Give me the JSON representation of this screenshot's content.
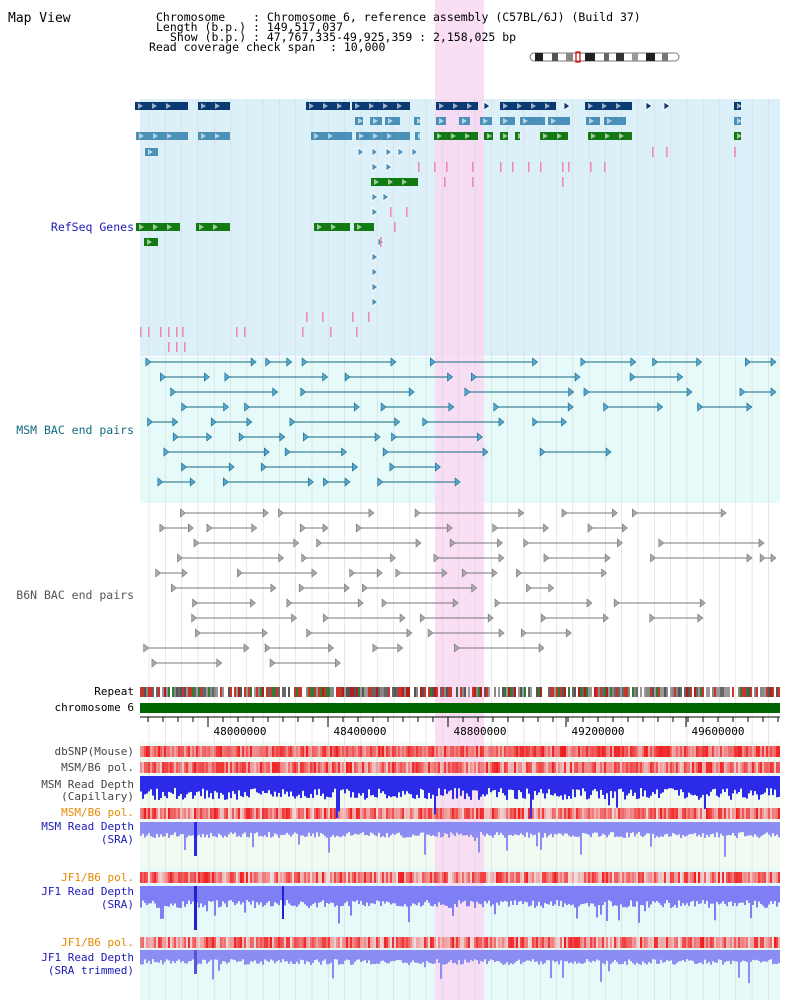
{
  "app": {
    "title": "Map View"
  },
  "header": {
    "chromosome_key": "Chromosome",
    "chromosome_value": ": Chromosome 6, reference assembly (C57BL/6J) (Build 37)",
    "length_key": "Length (b.p.)",
    "length_value": ": 149,517,037",
    "show_key": "Show (b.p.)",
    "show_value": ": 47,767,335-49,925,359 : 2,158,025 bp",
    "coverage_key": "Read coverage check span",
    "coverage_value": ": 10,000"
  },
  "tracks": {
    "refseq": "RefSeq Genes",
    "msm_bac": "MSM BAC end pairs",
    "b6n_bac": "B6N BAC end pairs",
    "repeat": "Repeat",
    "chromosome": "chromosome 6",
    "dbsnp": "dbSNP(Mouse)",
    "msm_b6_pol_1": "MSM/B6 pol.",
    "msm_depth_cap_1": "MSM Read Depth",
    "msm_depth_cap_2": "(Capillary)",
    "msm_b6_pol_2": "MSM/B6 pol.",
    "msm_depth_sra_1": "MSM Read Depth",
    "msm_depth_sra_2": "(SRA)",
    "jf1_b6_pol_1": "JF1/B6 pol.",
    "jf1_depth_sra_1": "JF1 Read Depth",
    "jf1_depth_sra_2": "(SRA)",
    "jf1_b6_pol_2": "JF1/B6 pol.",
    "jf1_depth_trim_1": "JF1 Read Depth",
    "jf1_depth_trim_2": "(SRA trimmed)"
  },
  "axis": {
    "ticks": [
      "48000000",
      "48400000",
      "48800000",
      "49200000",
      "49600000"
    ]
  },
  "colors": {
    "refseq_label": "#1a1ab8",
    "msm_bac_label": "#116b80",
    "b6n_bac_label": "#555555",
    "pol_label_orange": "#e88a00",
    "depth_label_blue": "#1a1ab8",
    "highlight": "#f9d8f2",
    "refseq_bg": "#dcf0fa",
    "msm_bg": "#e6fafa",
    "chrom_bar": "#006400"
  }
}
